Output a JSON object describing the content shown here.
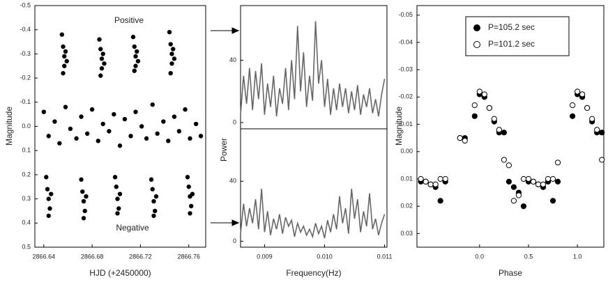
{
  "chart_data": [
    {
      "type": "scatter",
      "xlabel": "HJD (+2450000)",
      "ylabel": "Magnitude",
      "annotations": [
        "Positive",
        "Negative"
      ],
      "color": "#000000",
      "xlim": [
        2866.6326,
        2866.774
      ],
      "xticks": [
        2866.64,
        2866.68,
        2866.72,
        2866.76
      ],
      "ylim": [
        0.5,
        -0.5
      ],
      "yticks": [
        -0.5,
        -0.4,
        -0.3,
        -0.2,
        -0.1,
        {
          "value": 0,
          "label": "0.0"
        },
        0.1,
        0.2,
        0.3,
        0.4,
        0.5
      ],
      "x": [
        2866.655,
        2866.656,
        2866.657,
        2866.657,
        2866.658,
        2866.659,
        2866.656,
        2866.686,
        2866.687,
        2866.688,
        2866.688,
        2866.689,
        2866.69,
        2866.687,
        2866.714,
        2866.715,
        2866.716,
        2866.716,
        2866.717,
        2866.718,
        2866.715,
        2866.744,
        2866.745,
        2866.746,
        2866.746,
        2866.747,
        2866.748,
        2866.745,
        2866.642,
        2866.643,
        2866.644,
        2866.645,
        2866.646,
        2866.644,
        2866.671,
        2866.672,
        2866.673,
        2866.674,
        2866.675,
        2866.673,
        2866.699,
        2866.7,
        2866.701,
        2866.702,
        2866.703,
        2866.701,
        2866.729,
        2866.73,
        2866.731,
        2866.732,
        2866.733,
        2866.731,
        2866.759,
        2866.76,
        2866.761,
        2866.762,
        2866.763,
        2866.761,
        2866.64,
        2866.644,
        2866.649,
        2866.653,
        2866.658,
        2866.662,
        2866.667,
        2866.671,
        2866.676,
        2866.68,
        2866.685,
        2866.689,
        2866.694,
        2866.698,
        2866.703,
        2866.707,
        2866.712,
        2866.716,
        2866.721,
        2866.725,
        2866.73,
        2866.734,
        2866.739,
        2866.743,
        2866.748,
        2866.752,
        2866.757,
        2866.761,
        2866.766,
        2866.77
      ],
      "values": [
        -0.38,
        -0.33,
        -0.29,
        -0.25,
        -0.31,
        -0.27,
        -0.22,
        -0.36,
        -0.32,
        -0.28,
        -0.24,
        -0.3,
        -0.26,
        -0.21,
        -0.37,
        -0.33,
        -0.29,
        -0.25,
        -0.31,
        -0.27,
        -0.23,
        -0.39,
        -0.34,
        -0.3,
        -0.26,
        -0.32,
        -0.28,
        -0.22,
        0.21,
        0.26,
        0.3,
        0.34,
        0.28,
        0.37,
        0.22,
        0.27,
        0.31,
        0.35,
        0.29,
        0.38,
        0.21,
        0.25,
        0.3,
        0.34,
        0.28,
        0.36,
        0.22,
        0.26,
        0.31,
        0.35,
        0.29,
        0.37,
        0.21,
        0.25,
        0.29,
        0.33,
        0.28,
        0.36,
        -0.06,
        0.04,
        -0.02,
        0.07,
        -0.08,
        0.01,
        0.05,
        -0.04,
        0.03,
        -0.07,
        0.06,
        -0.01,
        0.02,
        -0.05,
        0.08,
        -0.03,
        0.04,
        -0.06,
        0.0,
        0.05,
        -0.09,
        0.03,
        -0.02,
        0.06,
        -0.04,
        0.02,
        -0.07,
        0.05,
        -0.01,
        0.04
      ]
    },
    {
      "type": "line",
      "ylabel": "Power",
      "color": "#666666",
      "xlim": [
        0.0086,
        0.01104
      ],
      "ylim": [
        -4,
        75
      ],
      "yticks": [
        0,
        40
      ],
      "x": [
        0.0086,
        0.00865,
        0.0087,
        0.00875,
        0.0088,
        0.00885,
        0.0089,
        0.00895,
        0.009,
        0.00905,
        0.0091,
        0.00915,
        0.0092,
        0.00925,
        0.0093,
        0.00935,
        0.0094,
        0.00945,
        0.0095,
        0.00955,
        0.0096,
        0.00965,
        0.0097,
        0.00975,
        0.0098,
        0.00985,
        0.0099,
        0.00995,
        0.01,
        0.01005,
        0.0101,
        0.01015,
        0.0102,
        0.01025,
        0.0103,
        0.01035,
        0.0104,
        0.01045,
        0.0105,
        0.01055,
        0.0106,
        0.01065,
        0.0107,
        0.01075,
        0.0108,
        0.01085,
        0.0109,
        0.01095,
        0.011
      ],
      "values": [
        5,
        30,
        12,
        35,
        8,
        33,
        15,
        38,
        5,
        25,
        10,
        30,
        4,
        22,
        12,
        35,
        8,
        40,
        15,
        62,
        20,
        45,
        10,
        30,
        14,
        65,
        25,
        40,
        10,
        28,
        5,
        22,
        8,
        25,
        10,
        22,
        6,
        20,
        8,
        24,
        5,
        18,
        10,
        22,
        6,
        15,
        4,
        18,
        28
      ]
    },
    {
      "type": "line",
      "xlabel": "Frequency(Hz)",
      "color": "#666666",
      "xlim": [
        0.0086,
        0.01104
      ],
      "xticks": [
        0.009,
        {
          "value": 0.01,
          "label": "0.010"
        },
        0.011
      ],
      "ylim": [
        -4,
        75
      ],
      "yticks": [
        0,
        40
      ],
      "x": [
        0.0086,
        0.00865,
        0.0087,
        0.00875,
        0.0088,
        0.00885,
        0.0089,
        0.00895,
        0.009,
        0.00905,
        0.0091,
        0.00915,
        0.0092,
        0.00925,
        0.0093,
        0.00935,
        0.0094,
        0.00945,
        0.0095,
        0.00955,
        0.0096,
        0.00965,
        0.0097,
        0.00975,
        0.0098,
        0.00985,
        0.0099,
        0.00995,
        0.01,
        0.01005,
        0.0101,
        0.01015,
        0.0102,
        0.01025,
        0.0103,
        0.01035,
        0.0104,
        0.01045,
        0.0105,
        0.01055,
        0.0106,
        0.01065,
        0.0107,
        0.01075,
        0.0108,
        0.01085,
        0.0109,
        0.01095,
        0.011
      ],
      "values": [
        5,
        25,
        10,
        22,
        12,
        28,
        8,
        35,
        6,
        20,
        4,
        15,
        8,
        18,
        5,
        16,
        10,
        14,
        3,
        12,
        6,
        10,
        4,
        8,
        3,
        12,
        5,
        10,
        2,
        14,
        6,
        18,
        8,
        30,
        12,
        22,
        5,
        35,
        15,
        28,
        6,
        20,
        10,
        32,
        8,
        15,
        4,
        12,
        18
      ]
    },
    {
      "type": "scatter",
      "xlabel": "Phase",
      "ylabel": "Magnitude",
      "xlim": [
        -0.64,
        1.27
      ],
      "xticks": [
        {
          "value": 0,
          "label": "0.0"
        },
        0.5,
        {
          "value": 1,
          "label": "1.0"
        }
      ],
      "ylim": [
        0.035,
        -0.0535
      ],
      "yticks": [
        -0.05,
        -0.04,
        -0.03,
        -0.02,
        -0.01,
        {
          "value": 0,
          "label": "0.00"
        },
        0.01,
        0.02,
        0.03
      ],
      "x": [
        -0.6,
        -0.55,
        -0.5,
        -0.45,
        -0.4,
        -0.35,
        -0.2,
        -0.15,
        -0.05,
        0.0,
        0.05,
        0.1,
        0.15,
        0.2,
        0.25,
        0.3,
        0.35,
        0.4,
        0.45,
        0.5,
        0.55,
        0.6,
        0.65,
        0.7,
        0.75,
        0.8,
        0.95,
        1.0,
        1.05,
        1.1,
        1.15,
        1.2,
        1.25
      ],
      "series": [
        {
          "name": "P=105.2 sec",
          "color": "#000000",
          "marker": "filled",
          "values": [
            0.011,
            0.011,
            0.012,
            0.013,
            0.018,
            0.011,
            -0.005,
            -0.005,
            -0.013,
            -0.021,
            -0.02,
            -0.016,
            -0.011,
            -0.007,
            -0.007,
            0.011,
            0.013,
            0.015,
            0.02,
            0.011,
            0.011,
            0.012,
            0.013,
            0.011,
            0.018,
            0.011,
            -0.013,
            -0.021,
            -0.02,
            -0.016,
            -0.011,
            -0.007,
            -0.007
          ]
        },
        {
          "name": "P=101.2 sec",
          "color": "#000000",
          "marker": "open",
          "values": [
            0.01,
            0.011,
            0.012,
            0.012,
            0.01,
            0.01,
            -0.005,
            -0.004,
            -0.017,
            -0.022,
            -0.021,
            -0.016,
            -0.012,
            -0.008,
            0.003,
            0.005,
            0.018,
            0.016,
            0.01,
            0.01,
            0.011,
            0.012,
            0.012,
            0.01,
            0.01,
            0.004,
            -0.017,
            -0.022,
            -0.021,
            -0.016,
            -0.012,
            -0.008,
            0.003
          ]
        }
      ]
    }
  ]
}
